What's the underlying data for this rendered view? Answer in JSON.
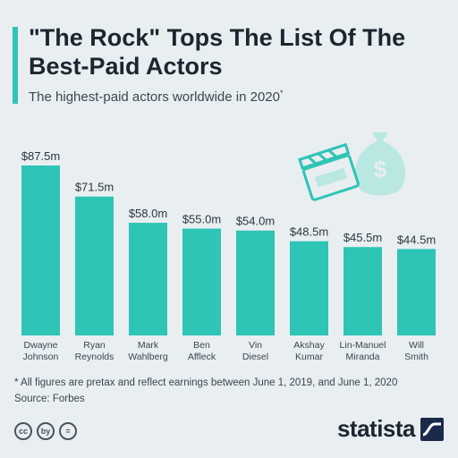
{
  "header": {
    "title": "\"The Rock\" Tops The List Of The Best-Paid Actors",
    "subtitle": "The highest-paid actors worldwide in 2020",
    "subtitle_mark": "*"
  },
  "chart_data": {
    "type": "bar",
    "categories": [
      [
        "Dwayne",
        "Johnson"
      ],
      [
        "Ryan",
        "Reynolds"
      ],
      [
        "Mark",
        "Wahlberg"
      ],
      [
        "Ben",
        "Affleck"
      ],
      [
        "Vin",
        "Diesel"
      ],
      [
        "Akshay",
        "Kumar"
      ],
      [
        "Lin-Manuel",
        "Miranda"
      ],
      [
        "Will",
        "Smith"
      ]
    ],
    "values": [
      87.5,
      71.5,
      58.0,
      55.0,
      54.0,
      48.5,
      45.5,
      44.5
    ],
    "value_labels": [
      "$87.5m",
      "$71.5m",
      "$58.0m",
      "$55.0m",
      "$54.0m",
      "$48.5m",
      "$45.5m",
      "$44.5m"
    ],
    "ylim": [
      0,
      87.5
    ],
    "bar_color": "#2ec4b6",
    "grid": false,
    "legend": "none"
  },
  "footer": {
    "footnote": "* All figures are pretax and reflect earnings between June 1, 2019, and June 1, 2020",
    "source": "Source: Forbes",
    "brand": "statista",
    "cc_icons": [
      "cc",
      "by",
      "="
    ]
  },
  "icons": [
    "clapperboard-icon",
    "money-bag-icon"
  ],
  "colors": {
    "accent": "#2ec4b6",
    "icon_light": "#b9e8e2",
    "brand_mark": "#1b2a4a"
  }
}
